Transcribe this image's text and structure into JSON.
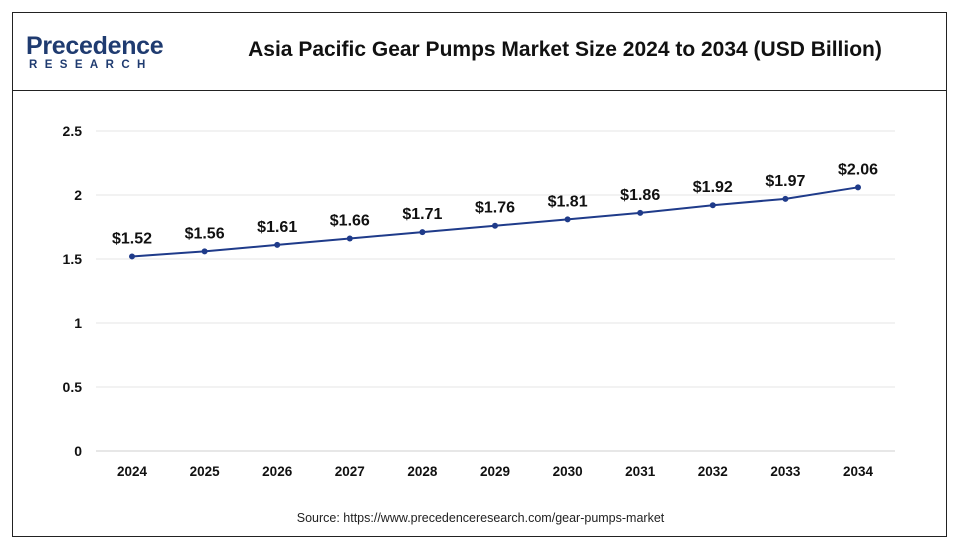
{
  "brand": {
    "logo_top": "Precedence",
    "logo_bottom": "RESEARCH",
    "color": "#1f3b70"
  },
  "source_text": "Source: https://www.precedenceresearch.com/gear-pumps-market",
  "chart_data": {
    "type": "line",
    "title": "Asia Pacific Gear Pumps Market Size 2024 to 2034 (USD Billion)",
    "xlabel": "",
    "ylabel": "",
    "categories": [
      "2024",
      "2025",
      "2026",
      "2027",
      "2028",
      "2029",
      "2030",
      "2031",
      "2032",
      "2033",
      "2034"
    ],
    "series": [
      {
        "values": [
          1.52,
          1.56,
          1.61,
          1.66,
          1.71,
          1.76,
          1.81,
          1.86,
          1.92,
          1.97,
          2.06
        ],
        "labels": [
          "$1.52",
          "$1.56",
          "$1.61",
          "$1.66",
          "$1.71",
          "$1.76",
          "$1.81",
          "$1.86",
          "$1.92",
          "$1.97",
          "$2.06"
        ],
        "color": "#1f3b8a"
      }
    ],
    "ylim": [
      0,
      2.5
    ],
    "yticks": [
      "0",
      "0.5",
      "1",
      "1.5",
      "2",
      "2.5"
    ],
    "grid": true
  }
}
